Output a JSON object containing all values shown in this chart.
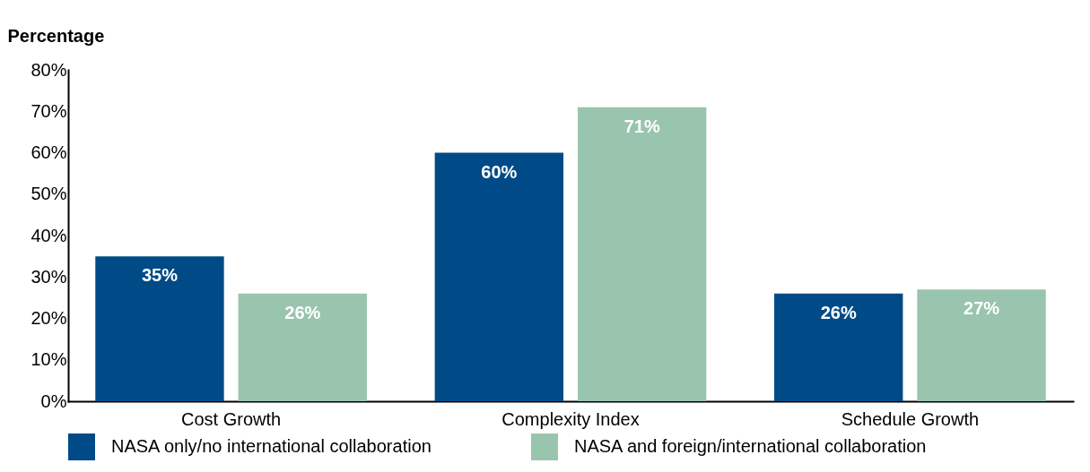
{
  "chart_data": {
    "type": "bar",
    "ylabel": "Percentage",
    "categories": [
      "Cost Growth",
      "Complexity Index",
      "Schedule Growth"
    ],
    "series": [
      {
        "name": "NASA only/no international collaboration",
        "color": "#004b87",
        "values": [
          35,
          60,
          26
        ]
      },
      {
        "name": "NASA and foreign/international collaboration",
        "color": "#99c4ae",
        "values": [
          26,
          71,
          27
        ]
      }
    ],
    "ylim": [
      0,
      80
    ],
    "yticks": [
      {
        "value": 0,
        "label": "0%"
      },
      {
        "value": 10,
        "label": "10%"
      },
      {
        "value": 20,
        "label": "20%"
      },
      {
        "value": 30,
        "label": "30%"
      },
      {
        "value": 40,
        "label": "40%"
      },
      {
        "value": 50,
        "label": "50%"
      },
      {
        "value": 60,
        "label": "60%"
      },
      {
        "value": 70,
        "label": "70%"
      },
      {
        "value": 80,
        "label": "80%"
      }
    ],
    "value_labels": [
      [
        "35%",
        "60%",
        "26%"
      ],
      [
        "26%",
        "71%",
        "27%"
      ]
    ],
    "grid": false,
    "legend": "bottom"
  }
}
